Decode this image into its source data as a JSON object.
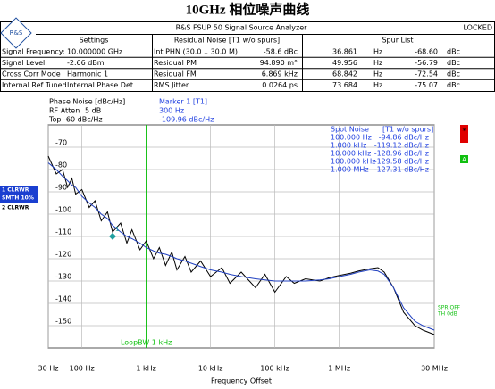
{
  "header": {
    "title": "10GHz 相位噪声曲线",
    "logo": "R&S",
    "analyzer": "R&S FSUP 50 Signal Source Analyzer",
    "status": "LOCKED"
  },
  "table": {
    "headers": [
      "Settings",
      "Residual Noise [T1 w/o spurs]",
      "Spur List"
    ],
    "rows": [
      [
        "Signal Frequency:",
        "10.000000 GHz",
        "Int PHN (30.0 .. 30.0 M)",
        "-58.6 dBc",
        "36.861",
        "Hz",
        "-68.60",
        "dBc"
      ],
      [
        "Signal Level:",
        "-2.66 dBm",
        "Residual PM",
        "94.890 m°",
        "49.956",
        "Hz",
        "-56.79",
        "dBc"
      ],
      [
        "Cross Corr Mode",
        "Harmonic 1",
        "Residual FM",
        "6.869 kHz",
        "68.842",
        "Hz",
        "-72.54",
        "dBc"
      ],
      [
        "Internal Ref Tuned",
        "Internal Phase Det",
        "RMS Jitter",
        "0.0264 ps",
        "73.684",
        "Hz",
        "-75.07",
        "dBc"
      ]
    ]
  },
  "info": {
    "phase_noise": "Phase Noise [dBc/Hz]",
    "rf_atten": "RF Atten",
    "rf_atten_value": "5 dB",
    "top": "Top -60 dBc/Hz",
    "marker": "Marker 1 [T1]",
    "marker_freq": "300 Hz",
    "marker_value": "-109.96 dBc/Hz"
  },
  "side": {
    "trace1": "1 CLRWR",
    "smooth": "SMTH 10%",
    "trace2": "2 CLRWR",
    "star": "*",
    "a": "A",
    "spr": "SPR OFF",
    "th": "TH 0dB"
  },
  "chart_data": {
    "type": "line",
    "xlabel": "Frequency Offset",
    "log_x": true,
    "grid": true,
    "x": [
      30,
      40,
      50,
      60,
      70,
      80,
      100,
      130,
      160,
      200,
      250,
      300,
      400,
      500,
      600,
      800,
      1000,
      1300,
      1600,
      2000,
      2500,
      3000,
      4000,
      5000,
      7000,
      10000,
      15000,
      20000,
      30000,
      50000,
      70000,
      100000,
      150000,
      200000,
      300000,
      500000,
      700000,
      1000000,
      1500000,
      2000000,
      3000000,
      4000000,
      5000000,
      7000000,
      10000000,
      15000000,
      20000000,
      30000000
    ],
    "series": [
      {
        "name": "2 CLRWR",
        "color": "#000000",
        "values": [
          -74,
          -82,
          -80,
          -88,
          -84,
          -91,
          -89,
          -97,
          -94,
          -103,
          -99,
          -108,
          -104,
          -113,
          -107,
          -116,
          -112,
          -120,
          -115,
          -123,
          -117,
          -125,
          -119,
          -126,
          -121,
          -128,
          -124,
          -131,
          -126,
          -133,
          -127,
          -135,
          -128,
          -131,
          -129,
          -130,
          -128.5,
          -127.5,
          -126.5,
          -125.5,
          -124.5,
          -124,
          -126,
          -133,
          -144,
          -150,
          -152,
          -154
        ]
      },
      {
        "name": "1 CLRWR",
        "color": "#2040c0",
        "values": [
          -77,
          -80,
          -83,
          -85,
          -87,
          -88,
          -92,
          -95,
          -97,
          -100,
          -102,
          -105,
          -108,
          -110,
          -111,
          -113,
          -115,
          -116.5,
          -117.5,
          -118,
          -119,
          -120,
          -121,
          -122,
          -123.5,
          -125,
          -126,
          -127,
          -128,
          -129,
          -129.5,
          -130,
          -130,
          -130,
          -130,
          -129.5,
          -129,
          -128,
          -127,
          -126,
          -125,
          -125.5,
          -127,
          -133,
          -142,
          -148,
          -150,
          -152
        ]
      }
    ],
    "xlim": [
      30,
      30000000
    ],
    "xticks": [
      {
        "value": 30,
        "label": "30 Hz"
      },
      {
        "value": 100,
        "label": "100 Hz"
      },
      {
        "value": 1000,
        "label": "1 kHz"
      },
      {
        "value": 10000,
        "label": "10 kHz"
      },
      {
        "value": 100000,
        "label": "100 kHz"
      },
      {
        "value": 1000000,
        "label": "1 MHz"
      },
      {
        "value": 30000000,
        "label": "30 MHz"
      }
    ],
    "ylim": [
      -160,
      -60
    ],
    "yticks": [
      -70,
      -80,
      -90,
      -100,
      -110,
      -120,
      -130,
      -140,
      -150
    ],
    "marker": {
      "label": "1",
      "x": 300,
      "y": -109.96
    },
    "loop_bw": {
      "label": "LoopBW 1 kHz",
      "x": 1000
    },
    "spot_noise": {
      "title": "Spot Noise",
      "subtitle": "[T1 w/o spurs]",
      "freqs": [
        "100.000 Hz",
        "1.000 kHz",
        "10.000 kHz",
        "100.000 kHz",
        "1.000 MHz"
      ],
      "values": [
        "-94.86 dBc/Hz",
        "-119.12 dBc/Hz",
        "-128.96 dBc/Hz",
        "-129.58 dBc/Hz",
        "-127.31 dBc/Hz"
      ]
    }
  }
}
